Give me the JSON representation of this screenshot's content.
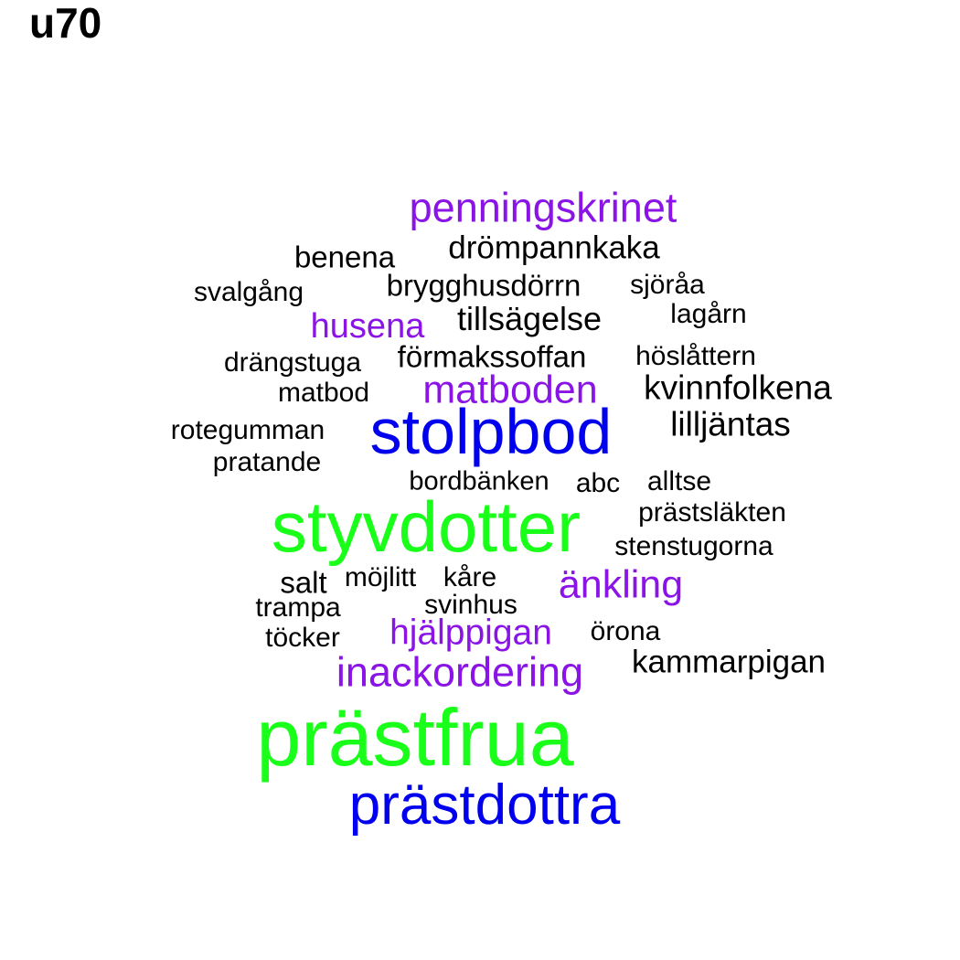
{
  "title": "u70",
  "colors": {
    "black": "#000000",
    "purple": "#8a14e6",
    "blue": "#0000ee",
    "green": "#1aff1a"
  },
  "words": {
    "penningskrinet": "penningskrinet",
    "drompannkaka": "drömpannkaka",
    "benena": "benena",
    "svalgang": "svalgång",
    "brygghusdorrn": "brygghusdörrn",
    "sjoraa": "sjöråa",
    "lagarn": "lagårn",
    "husena": "husena",
    "tillsagelse": "tillsägelse",
    "drangstuga": "drängstuga",
    "formakssoffan": "förmakssoffan",
    "hoslattern": "höslåttern",
    "matbod": "matbod",
    "matboden": "matboden",
    "kvinnfolkena": "kvinnfolkena",
    "rotegumman": "rotegumman",
    "stolpbod": "stolpbod",
    "lilljantas": "lilljäntas",
    "pratande": "pratande",
    "bordbanken": "bordbänken",
    "abc": "abc",
    "alltse": "alltse",
    "styvdotter": "styvdotter",
    "prastslakten": "prästsläkten",
    "stenstugorna": "stenstugorna",
    "salt": "salt",
    "mojlitt": "möjlitt",
    "kare": "kåre",
    "ankling": "änkling",
    "trampa": "trampa",
    "svinhus": "svinhus",
    "tocker": "töcker",
    "hjalppigan": "hjälppigan",
    "orona": "örona",
    "inackordering": "inackordering",
    "kammarpigan": "kammarpigan",
    "prastfrua": "prästfrua",
    "prastdottra": "prästdottra"
  }
}
